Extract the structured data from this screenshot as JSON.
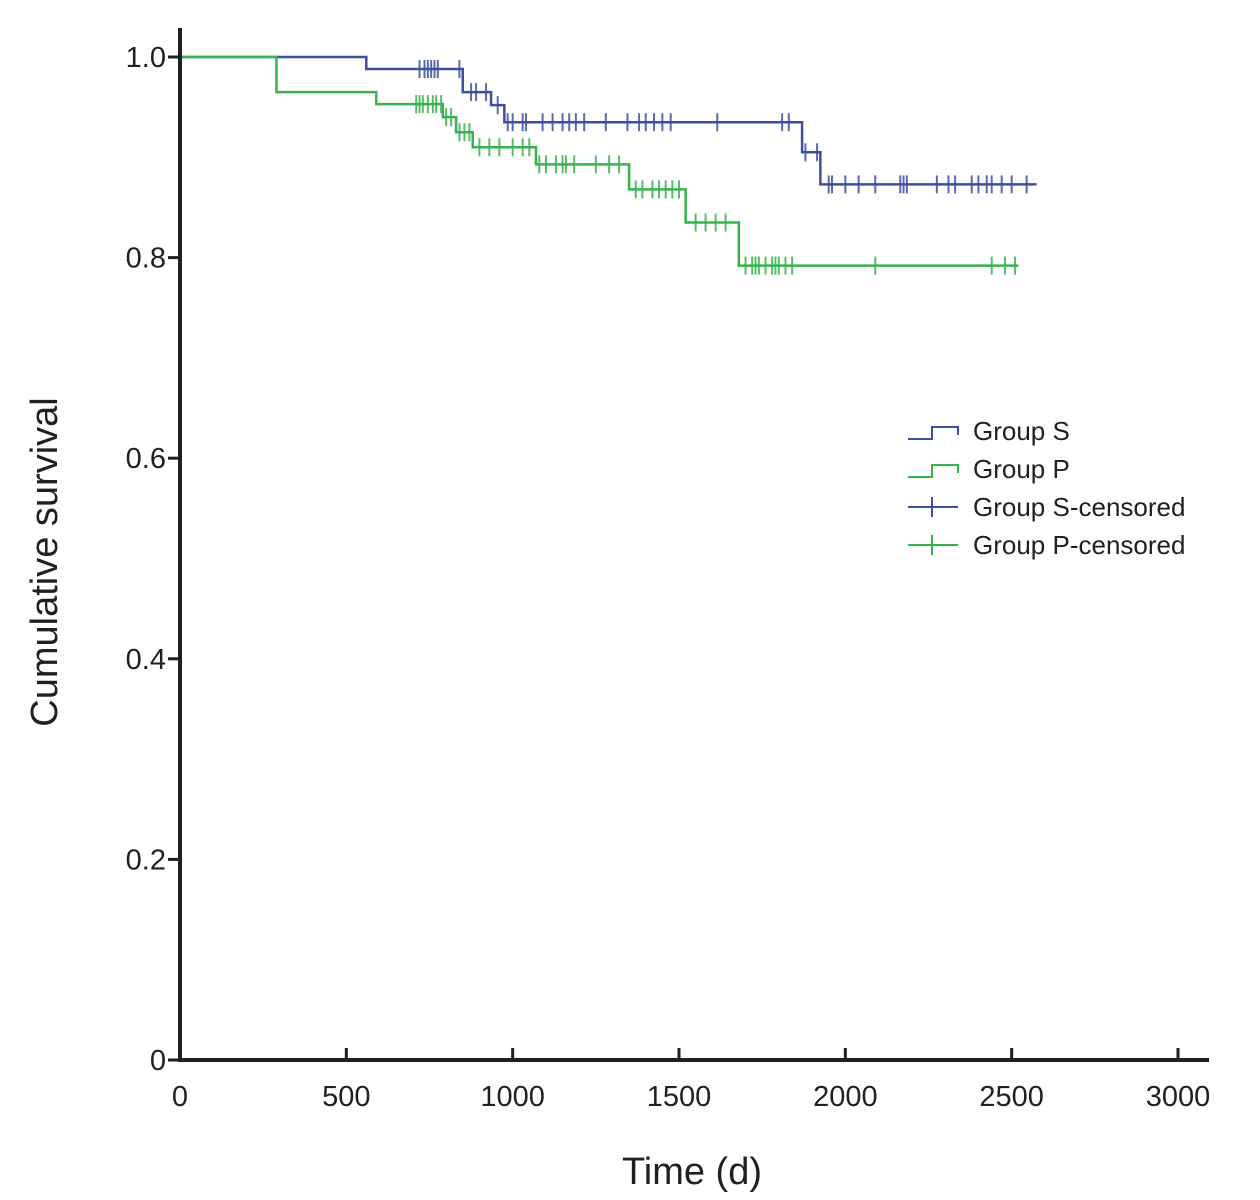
{
  "chart_data": {
    "type": "line",
    "subtype": "kaplan-meier-step",
    "title": "",
    "xlabel": "Time (d)",
    "ylabel": "Cumulative survival",
    "xlim": [
      0,
      3000
    ],
    "ylim": [
      0,
      1.0
    ],
    "x_ticks": [
      0,
      500,
      1000,
      1500,
      2000,
      2500,
      3000
    ],
    "x_tick_labels": [
      "0",
      "500",
      "1000",
      "1500",
      "2000",
      "2500",
      "3000"
    ],
    "y_ticks": [
      0,
      0.2,
      0.4,
      0.6,
      0.8,
      1.0
    ],
    "y_tick_labels": [
      "0",
      "0.2",
      "0.4",
      "0.6",
      "0.8",
      "1.0"
    ],
    "grid": false,
    "legend_position": "right",
    "legend": [
      "Group S",
      "Group P",
      "Group S-censored",
      "Group P-censored"
    ],
    "series": [
      {
        "name": "Group S",
        "color": "#3f4fa0",
        "steps": [
          {
            "x": 0,
            "y": 1.0
          },
          {
            "x": 560,
            "y": 0.988
          },
          {
            "x": 850,
            "y": 0.965
          },
          {
            "x": 935,
            "y": 0.952
          },
          {
            "x": 975,
            "y": 0.935
          },
          {
            "x": 1870,
            "y": 0.905
          },
          {
            "x": 1925,
            "y": 0.873
          },
          {
            "x": 2575,
            "y": 0.873
          }
        ],
        "censored": [
          720,
          735,
          745,
          755,
          765,
          775,
          840,
          875,
          890,
          920,
          955,
          985,
          1000,
          1030,
          1040,
          1090,
          1120,
          1150,
          1170,
          1190,
          1215,
          1280,
          1345,
          1380,
          1400,
          1425,
          1450,
          1475,
          1615,
          1810,
          1830,
          1880,
          1915,
          1950,
          1960,
          2000,
          2040,
          2090,
          2165,
          2175,
          2185,
          2275,
          2310,
          2330,
          2380,
          2400,
          2425,
          2440,
          2470,
          2500,
          2545
        ]
      },
      {
        "name": "Group P",
        "color": "#37b24d",
        "steps": [
          {
            "x": 0,
            "y": 1.0
          },
          {
            "x": 290,
            "y": 0.965
          },
          {
            "x": 590,
            "y": 0.953
          },
          {
            "x": 790,
            "y": 0.94
          },
          {
            "x": 830,
            "y": 0.925
          },
          {
            "x": 880,
            "y": 0.91
          },
          {
            "x": 1070,
            "y": 0.893
          },
          {
            "x": 1350,
            "y": 0.868
          },
          {
            "x": 1520,
            "y": 0.835
          },
          {
            "x": 1680,
            "y": 0.792
          },
          {
            "x": 2520,
            "y": 0.792
          }
        ],
        "censored": [
          710,
          720,
          730,
          745,
          760,
          770,
          785,
          800,
          815,
          840,
          855,
          870,
          900,
          930,
          960,
          1000,
          1030,
          1050,
          1080,
          1100,
          1130,
          1150,
          1160,
          1185,
          1250,
          1290,
          1320,
          1370,
          1390,
          1420,
          1440,
          1460,
          1480,
          1500,
          1550,
          1580,
          1610,
          1640,
          1700,
          1720,
          1730,
          1740,
          1760,
          1780,
          1790,
          1800,
          1820,
          1840,
          2090,
          2440,
          2480,
          2510
        ]
      }
    ]
  }
}
